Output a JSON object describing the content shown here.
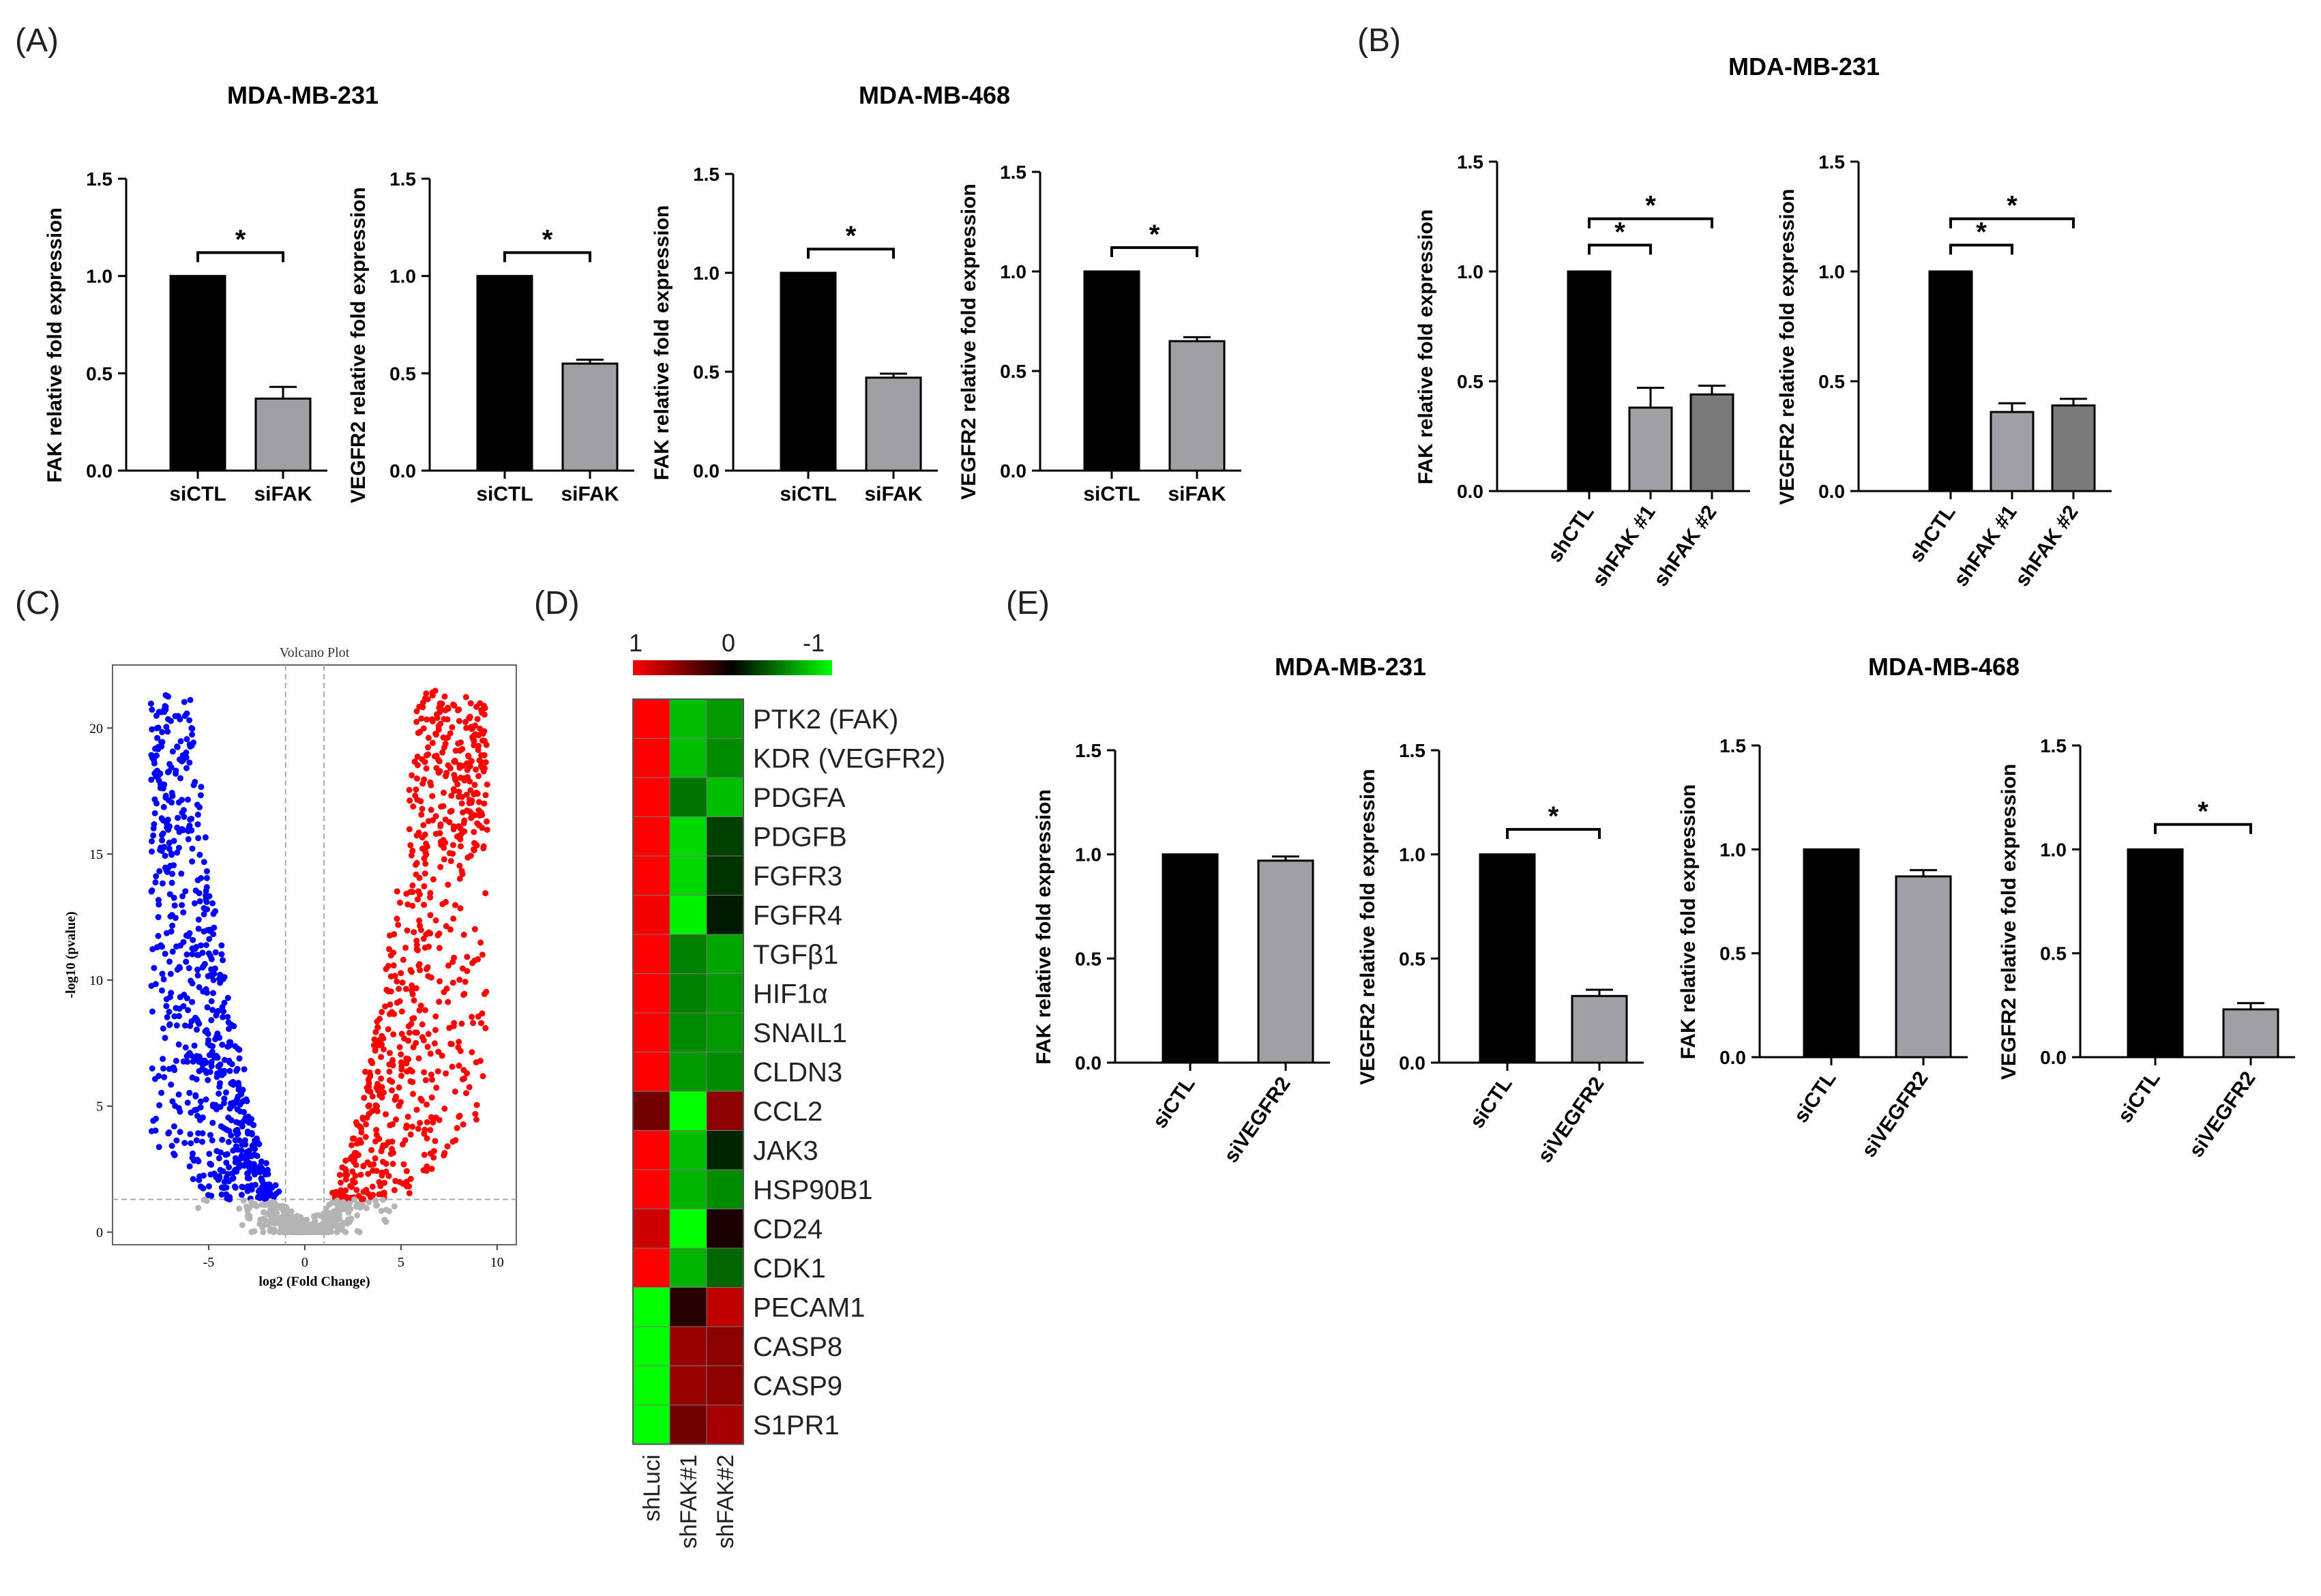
{
  "figure": {
    "panel_labels": [
      "(A)",
      "(B)",
      "(C)",
      "(D)",
      "(E)"
    ],
    "group_titles": {
      "A_left": "MDA-MB-231",
      "A_right": "MDA-MB-468",
      "B": "MDA-MB-231",
      "E_left": "MDA-MB-231",
      "E_right": "MDA-MB-468"
    },
    "colors": {
      "black_bar": "#000000",
      "gray_bar": "#a0a0a4",
      "dark_gray_bar": "#7a7a7a",
      "up": "#ff0000",
      "down": "#0000ff",
      "ns": "#b4b4b4"
    }
  },
  "chart_data": [
    {
      "id": "A1",
      "type": "bar",
      "title": "",
      "group": "MDA-MB-231",
      "categories": [
        "siCTL",
        "siFAK"
      ],
      "values": [
        1.0,
        0.37
      ],
      "errors": [
        0,
        0.06
      ],
      "ylabel": "FAK relative fold expression",
      "ylim": [
        0,
        1.5
      ],
      "yticks": [
        "0.0",
        "0.5",
        "1.0",
        "1.5"
      ],
      "significance": [
        {
          "from": 0,
          "to": 1,
          "label": "*"
        }
      ]
    },
    {
      "id": "A2",
      "type": "bar",
      "title": "",
      "group": "MDA-MB-231",
      "categories": [
        "siCTL",
        "siFAK"
      ],
      "values": [
        1.0,
        0.55
      ],
      "errors": [
        0,
        0.02
      ],
      "ylabel": "VEGFR2 relative fold expression",
      "ylim": [
        0,
        1.5
      ],
      "yticks": [
        "0.0",
        "0.5",
        "1.0",
        "1.5"
      ],
      "significance": [
        {
          "from": 0,
          "to": 1,
          "label": "*"
        }
      ]
    },
    {
      "id": "A3",
      "type": "bar",
      "title": "",
      "group": "MDA-MB-468",
      "categories": [
        "siCTL",
        "siFAK"
      ],
      "values": [
        1.0,
        0.47
      ],
      "errors": [
        0,
        0.02
      ],
      "ylabel": "FAK relative fold expression",
      "ylim": [
        0,
        1.5
      ],
      "yticks": [
        "0.0",
        "0.5",
        "1.0",
        "1.5"
      ],
      "significance": [
        {
          "from": 0,
          "to": 1,
          "label": "*"
        }
      ]
    },
    {
      "id": "A4",
      "type": "bar",
      "title": "",
      "group": "MDA-MB-468",
      "categories": [
        "siCTL",
        "siFAK"
      ],
      "values": [
        1.0,
        0.65
      ],
      "errors": [
        0,
        0.02
      ],
      "ylabel": "VEGFR2 relative fold expression",
      "ylim": [
        0,
        1.5
      ],
      "yticks": [
        "0.0",
        "0.5",
        "1.0",
        "1.5"
      ],
      "significance": [
        {
          "from": 0,
          "to": 1,
          "label": "*"
        }
      ]
    },
    {
      "id": "B1",
      "type": "bar",
      "title": "",
      "group": "MDA-MB-231",
      "categories": [
        "shCTL",
        "shFAK #1",
        "shFAK #2"
      ],
      "values": [
        1.0,
        0.38,
        0.44
      ],
      "errors": [
        0,
        0.09,
        0.04
      ],
      "ylabel": "FAK relative fold expression",
      "ylim": [
        0,
        1.5
      ],
      "yticks": [
        "0.0",
        "0.5",
        "1.0",
        "1.5"
      ],
      "significance": [
        {
          "from": 0,
          "to": 1,
          "label": "*"
        },
        {
          "from": 0,
          "to": 2,
          "label": "*"
        }
      ]
    },
    {
      "id": "B2",
      "type": "bar",
      "title": "",
      "group": "MDA-MB-231",
      "categories": [
        "shCTL",
        "shFAK #1",
        "shFAK #2"
      ],
      "values": [
        1.0,
        0.36,
        0.39
      ],
      "errors": [
        0,
        0.04,
        0.03
      ],
      "ylabel": "VEGFR2 relative fold expression",
      "ylim": [
        0,
        1.5
      ],
      "yticks": [
        "0.0",
        "0.5",
        "1.0",
        "1.5"
      ],
      "significance": [
        {
          "from": 0,
          "to": 1,
          "label": "*"
        },
        {
          "from": 0,
          "to": 2,
          "label": "*"
        }
      ]
    },
    {
      "id": "C",
      "type": "scatter",
      "title": "Volcano Plot",
      "xlabel": "log2 (Fold Change)",
      "ylabel": "-log10 (pvalue)",
      "xlim": [
        -10,
        11
      ],
      "ylim": [
        -0.5,
        22.5
      ],
      "xticks": [
        "-5",
        "0",
        "5",
        "10"
      ],
      "yticks": [
        "0",
        "5",
        "10",
        "15",
        "20"
      ],
      "fold_change_cutoff": [
        -1,
        1
      ],
      "pvalue_cutoff": 1.3,
      "series": [
        {
          "name": "down",
          "color": "#0000ff"
        },
        {
          "name": "up",
          "color": "#ff0000"
        },
        {
          "name": "not significant",
          "color": "#b4b4b4"
        }
      ]
    },
    {
      "id": "D",
      "type": "heatmap",
      "title": "",
      "scale_labels": [
        "1",
        "0",
        "-1"
      ],
      "columns": [
        "shLuci",
        "shFAK#1",
        "shFAK#2"
      ],
      "rows": [
        "PTK2 (FAK)",
        "KDR (VEGFR2)",
        "PDGFA",
        "PDGFB",
        "FGFR3",
        "FGFR4",
        "TGFβ1",
        "HIF1α",
        "SNAIL1",
        "CLDN3",
        "CCL2",
        "JAK3",
        "HSP90B1",
        "CD24",
        "CDK1",
        "PECAM1",
        "CASP8",
        "CASP9",
        "S1PR1"
      ],
      "values": [
        [
          1.0,
          -0.75,
          -0.6
        ],
        [
          1.0,
          -0.75,
          -0.55
        ],
        [
          1.0,
          -0.45,
          -0.75
        ],
        [
          1.0,
          -0.85,
          -0.25
        ],
        [
          1.0,
          -0.85,
          -0.2
        ],
        [
          0.95,
          -0.95,
          -0.1
        ],
        [
          1.0,
          -0.5,
          -0.65
        ],
        [
          1.0,
          -0.5,
          -0.6
        ],
        [
          1.0,
          -0.55,
          -0.6
        ],
        [
          1.0,
          -0.6,
          -0.55
        ],
        [
          0.45,
          -1.0,
          0.55
        ],
        [
          1.0,
          -0.75,
          -0.15
        ],
        [
          1.0,
          -0.7,
          -0.55
        ],
        [
          0.8,
          -1.0,
          0.1
        ],
        [
          1.0,
          -0.7,
          -0.4
        ],
        [
          -1.0,
          0.15,
          0.75
        ],
        [
          -1.0,
          0.6,
          0.55
        ],
        [
          -1.0,
          0.6,
          0.55
        ],
        [
          -1.0,
          0.45,
          0.65
        ]
      ]
    },
    {
      "id": "E1",
      "type": "bar",
      "title": "",
      "group": "MDA-MB-231",
      "categories": [
        "siCTL",
        "siVEGFR2"
      ],
      "values": [
        1.0,
        0.97
      ],
      "errors": [
        0,
        0.02
      ],
      "ylabel": "FAK relative fold expression",
      "ylim": [
        0,
        1.5
      ],
      "yticks": [
        "0.0",
        "0.5",
        "1.0",
        "1.5"
      ],
      "significance": []
    },
    {
      "id": "E2",
      "type": "bar",
      "title": "",
      "group": "MDA-MB-231",
      "categories": [
        "siCTL",
        "siVEGFR2"
      ],
      "values": [
        1.0,
        0.32
      ],
      "errors": [
        0,
        0.03
      ],
      "ylabel": "VEGFR2 relative fold expression",
      "ylim": [
        0,
        1.5
      ],
      "yticks": [
        "0.0",
        "0.5",
        "1.0",
        "1.5"
      ],
      "significance": [
        {
          "from": 0,
          "to": 1,
          "label": "*"
        }
      ]
    },
    {
      "id": "E3",
      "type": "bar",
      "title": "",
      "group": "MDA-MB-468",
      "categories": [
        "siCTL",
        "siVEGFR2"
      ],
      "values": [
        1.0,
        0.87
      ],
      "errors": [
        0,
        0.03
      ],
      "ylabel": "FAK relative fold expression",
      "ylim": [
        0,
        1.5
      ],
      "yticks": [
        "0.0",
        "0.5",
        "1.0",
        "1.5"
      ],
      "significance": []
    },
    {
      "id": "E4",
      "type": "bar",
      "title": "",
      "group": "MDA-MB-468",
      "categories": [
        "siCTL",
        "siVEGFR2"
      ],
      "values": [
        1.0,
        0.23
      ],
      "errors": [
        0,
        0.03
      ],
      "ylabel": "VEGFR2 relative fold expression",
      "ylim": [
        0,
        1.5
      ],
      "yticks": [
        "0.0",
        "0.5",
        "1.0",
        "1.5"
      ],
      "significance": [
        {
          "from": 0,
          "to": 1,
          "label": "*"
        }
      ]
    }
  ]
}
